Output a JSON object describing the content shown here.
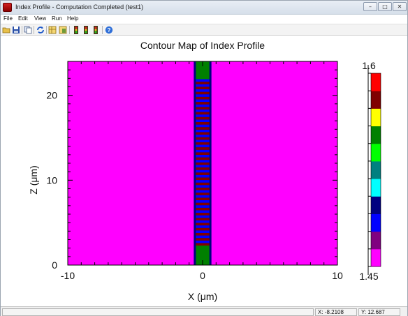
{
  "window": {
    "title": "Index Profile - Computation Completed (test1)",
    "controls": {
      "minimize": "–",
      "restore": "□",
      "close": "✕"
    }
  },
  "menu": [
    "File",
    "Edit",
    "View",
    "Run",
    "Help"
  ],
  "toolbar": {
    "icons": [
      "open-folder-icon",
      "save-icon",
      "copy-icon",
      "refresh-icon",
      "layout-grid-icon",
      "layout-alt-icon",
      "traffic-light-icon-1",
      "traffic-light-icon-2",
      "traffic-light-icon-3",
      "help-icon"
    ]
  },
  "chart_data": {
    "type": "heatmap",
    "title": "Contour Map of Index Profile",
    "xlabel": "X (μm)",
    "ylabel": "Z (μm)",
    "xlim": [
      -10,
      10
    ],
    "ylim": [
      0,
      24
    ],
    "x_ticks": [
      -10,
      0,
      10
    ],
    "y_ticks": [
      0,
      10,
      20
    ],
    "colorbar": {
      "min": 1.45,
      "max": 1.6,
      "min_label": "1.45",
      "max_label": "1.6",
      "colors": [
        "#ff00ff",
        "#800080",
        "#0000ff",
        "#000080",
        "#00ffff",
        "#008080",
        "#00ff00",
        "#008000",
        "#ffff00",
        "#800000",
        "#ff0000"
      ]
    },
    "background_index": 1.45,
    "waveguide": {
      "x_range": [
        -0.5,
        0.5
      ],
      "core_index": 1.6,
      "end_section_index": 1.55,
      "bottom_section_z": [
        0,
        2.3
      ],
      "top_section_z": [
        21.9,
        24
      ],
      "grating_z": [
        2.3,
        21.9
      ],
      "grating_periods": 33,
      "grating_colors": [
        "#800000",
        "#0000ff"
      ]
    }
  },
  "status": {
    "x_readout": "X: -8.2108",
    "y_readout": "Y: 12.687"
  }
}
